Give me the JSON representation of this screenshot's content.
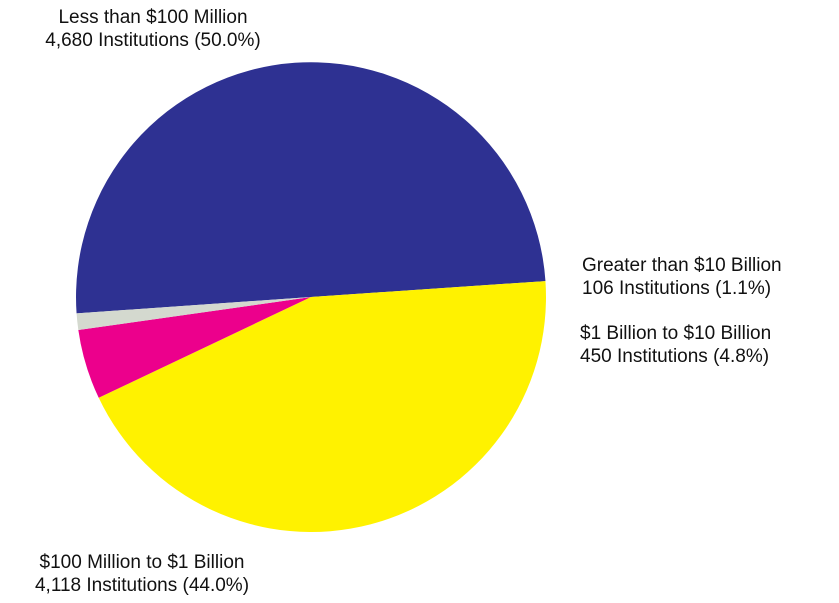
{
  "chart_data": {
    "type": "pie",
    "slices": [
      {
        "label": "Less than $100 Million",
        "detail": "4,680 Institutions (50.0%)",
        "value": 4680,
        "percent": 50.0,
        "color": "#2e3192"
      },
      {
        "label": "$100 Million to $1 Billion",
        "detail": "4,118 Institutions (44.0%)",
        "value": 4118,
        "percent": 44.0,
        "color": "#fff200"
      },
      {
        "label": "$1 Billion to $10 Billion",
        "detail": "450 Institutions (4.8%)",
        "value": 450,
        "percent": 4.8,
        "color": "#ec008c"
      },
      {
        "label": "Greater than $10 Billion",
        "detail": "106 Institutions (1.1%)",
        "value": 106,
        "percent": 1.1,
        "color": "#d4d9cf"
      }
    ]
  }
}
